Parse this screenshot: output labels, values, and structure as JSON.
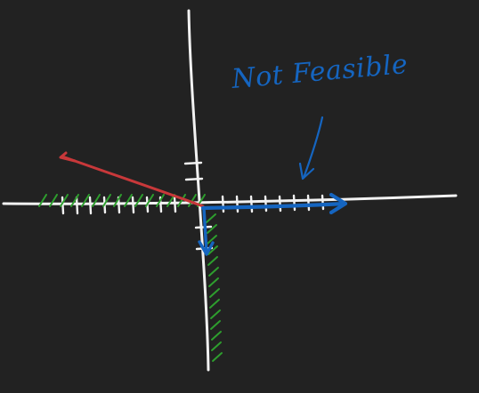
{
  "annotation": {
    "text": "Not Feasible"
  },
  "colors": {
    "background": "#222222",
    "axes": "#f2f2f2",
    "hatch": "#2e9e2e",
    "red_vector": "#c8383a",
    "blue_vector": "#1565c0",
    "annotation": "#1565c0"
  },
  "shapes": [
    "x-axis",
    "y-axis",
    "tick-marks",
    "feasible-hatching-negative-x",
    "feasible-hatching-negative-y",
    "red-arrow",
    "blue-ray",
    "blue-short-arrow",
    "annotation-pointer-arrow"
  ]
}
